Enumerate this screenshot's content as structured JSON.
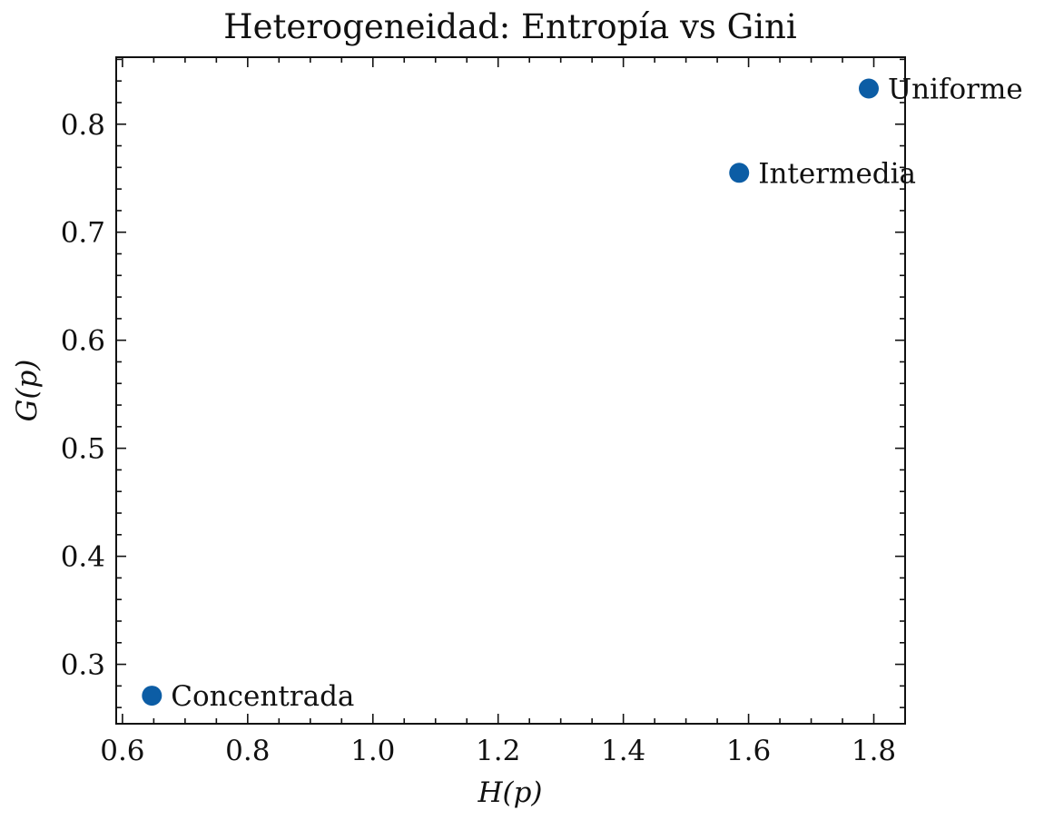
{
  "chart_data": {
    "type": "scatter",
    "title": "Heterogeneidad: Entropía vs Gini",
    "xlabel": "H(p)",
    "ylabel": "G(p)",
    "xlim": [
      0.59,
      1.85
    ],
    "ylim": [
      0.245,
      0.862
    ],
    "xticks": [
      0.6,
      0.8,
      1.0,
      1.2,
      1.4,
      1.6,
      1.8
    ],
    "xtick_labels": [
      "0.6",
      "0.8",
      "1.0",
      "1.2",
      "1.4",
      "1.6",
      "1.8"
    ],
    "yticks": [
      0.3,
      0.4,
      0.5,
      0.6,
      0.7,
      0.8
    ],
    "ytick_labels": [
      "0.3",
      "0.4",
      "0.5",
      "0.6",
      "0.7",
      "0.8"
    ],
    "grid": false,
    "marker_color": "#0c5da5",
    "points": [
      {
        "label": "Concentrada",
        "x": 0.647,
        "y": 0.271
      },
      {
        "label": "Intermedia",
        "x": 1.585,
        "y": 0.755
      },
      {
        "label": "Uniforme",
        "x": 1.792,
        "y": 0.833
      }
    ]
  }
}
